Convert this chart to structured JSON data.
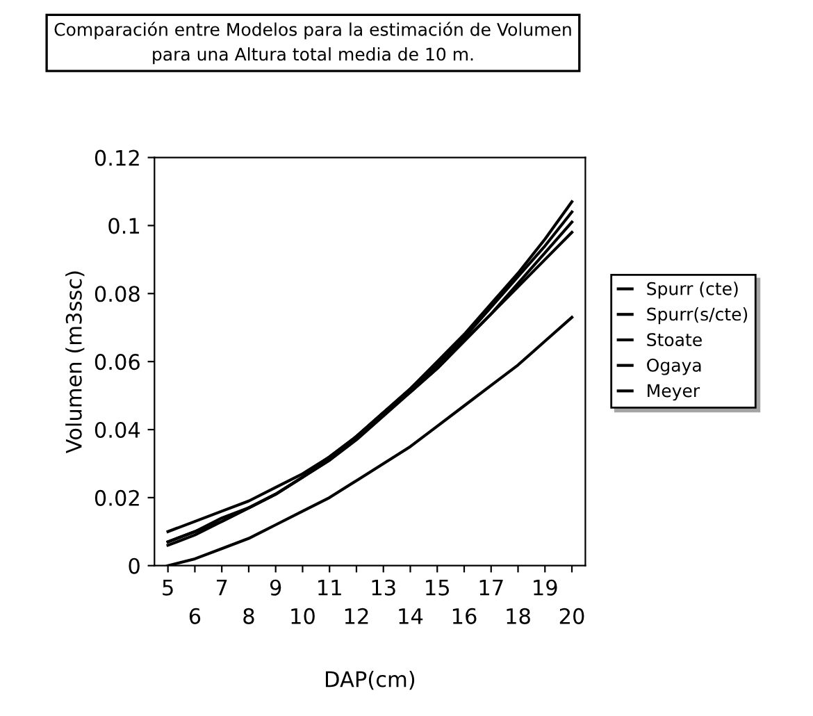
{
  "chart_data": {
    "type": "line",
    "title": "Comparación entre Modelos para la estimación de Volumen\npara una Altura total media de 10 m.",
    "xlabel": "DAP(cm)",
    "ylabel": "Volumen (m3ssc)",
    "categories": [
      "5",
      "6",
      "7",
      "8",
      "9",
      "10",
      "11",
      "12",
      "13",
      "14",
      "15",
      "16",
      "17",
      "18",
      "19",
      "20"
    ],
    "series": [
      {
        "name": "Spurr (cte)",
        "color": "#000000",
        "values": [
          0.006,
          0.009,
          0.013,
          0.017,
          0.021,
          0.026,
          0.032,
          0.038,
          0.045,
          0.052,
          0.06,
          0.068,
          0.077,
          0.086,
          0.096,
          0.107
        ]
      },
      {
        "name": "Spurr(s/cte)",
        "color": "#000000",
        "values": [
          0.007,
          0.01,
          0.013,
          0.017,
          0.021,
          0.026,
          0.031,
          0.038,
          0.045,
          0.052,
          0.059,
          0.067,
          0.076,
          0.085,
          0.094,
          0.104
        ]
      },
      {
        "name": "Stoate",
        "color": "#000000",
        "values": [
          0.007,
          0.01,
          0.014,
          0.017,
          0.021,
          0.026,
          0.031,
          0.037,
          0.044,
          0.051,
          0.058,
          0.066,
          0.074,
          0.083,
          0.092,
          0.101
        ]
      },
      {
        "name": "Ogaya",
        "color": "#000000",
        "values": [
          0.01,
          0.013,
          0.016,
          0.019,
          0.023,
          0.027,
          0.032,
          0.038,
          0.045,
          0.051,
          0.058,
          0.066,
          0.074,
          0.082,
          0.09,
          0.098
        ]
      },
      {
        "name": "Meyer",
        "color": "#000000",
        "values": [
          0.0,
          0.002,
          0.005,
          0.008,
          0.012,
          0.016,
          0.02,
          0.025,
          0.03,
          0.035,
          0.041,
          0.047,
          0.053,
          0.059,
          0.066,
          0.073
        ]
      }
    ],
    "ylim": [
      0,
      0.12
    ],
    "yticks": [
      0,
      0.02,
      0.04,
      0.06,
      0.08,
      0.1,
      0.12
    ],
    "grid": false,
    "legend": "right",
    "marker": "none",
    "line_style": "solid"
  }
}
